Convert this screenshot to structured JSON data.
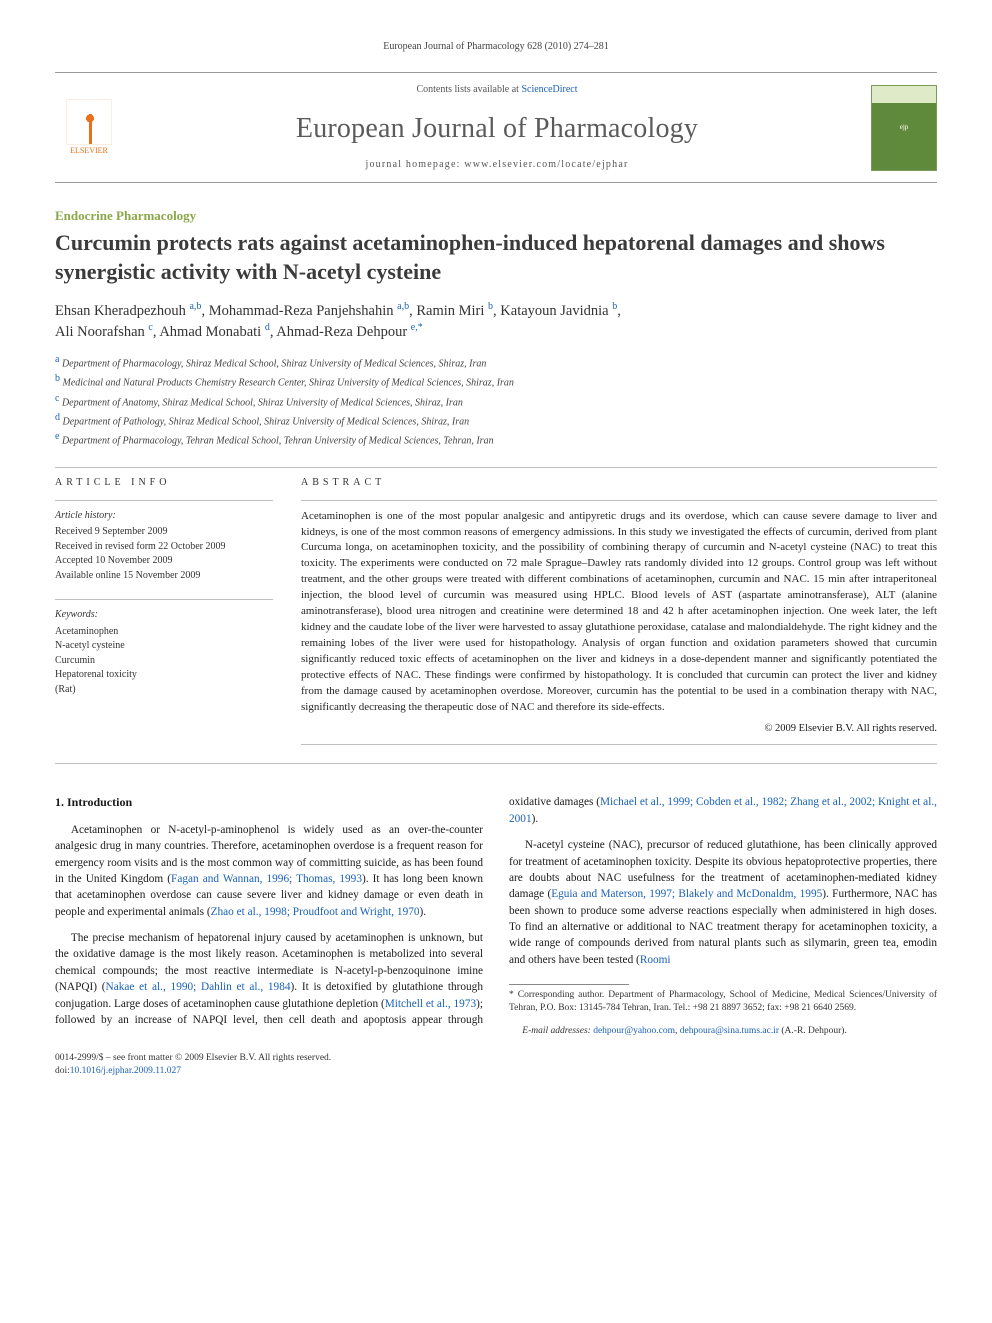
{
  "header": {
    "running_head": "European Journal of Pharmacology 628 (2010) 274–281",
    "contents_prefix": "Contents lists available at ",
    "contents_link": "ScienceDirect",
    "journal_name": "European Journal of Pharmacology",
    "homepage_prefix": "journal homepage: ",
    "homepage_url": "www.elsevier.com/locate/ejphar",
    "elsevier_label": "ELSEVIER"
  },
  "section_label": "Endocrine Pharmacology",
  "title": "Curcumin protects rats against acetaminophen-induced hepatorenal damages and shows synergistic activity with N-acetyl cysteine",
  "authors": [
    {
      "name": "Ehsan Kheradpezhouh",
      "affs": "a,b"
    },
    {
      "name": "Mohammad-Reza Panjehshahin",
      "affs": "a,b"
    },
    {
      "name": "Ramin Miri",
      "affs": "b"
    },
    {
      "name": "Katayoun Javidnia",
      "affs": "b"
    },
    {
      "name": "Ali Noorafshan",
      "affs": "c"
    },
    {
      "name": "Ahmad Monabati",
      "affs": "d"
    },
    {
      "name": "Ahmad-Reza Dehpour",
      "affs": "e,*"
    }
  ],
  "affiliations": [
    {
      "key": "a",
      "text": "Department of Pharmacology, Shiraz Medical School, Shiraz University of Medical Sciences, Shiraz, Iran"
    },
    {
      "key": "b",
      "text": "Medicinal and Natural Products Chemistry Research Center, Shiraz University of Medical Sciences, Shiraz, Iran"
    },
    {
      "key": "c",
      "text": "Department of Anatomy, Shiraz Medical School, Shiraz University of Medical Sciences, Shiraz, Iran"
    },
    {
      "key": "d",
      "text": "Department of Pathology, Shiraz Medical School, Shiraz University of Medical Sciences, Shiraz, Iran"
    },
    {
      "key": "e",
      "text": "Department of Pharmacology, Tehran Medical School, Tehran University of Medical Sciences, Tehran, Iran"
    }
  ],
  "article_info": {
    "heading": "ARTICLE INFO",
    "history_label": "Article history:",
    "received": "Received 9 September 2009",
    "revised": "Received in revised form 22 October 2009",
    "accepted": "Accepted 10 November 2009",
    "online": "Available online 15 November 2009",
    "keywords_label": "Keywords:",
    "keywords": [
      "Acetaminophen",
      "N-acetyl cysteine",
      "Curcumin",
      "Hepatorenal toxicity",
      "(Rat)"
    ]
  },
  "abstract": {
    "heading": "ABSTRACT",
    "text": "Acetaminophen is one of the most popular analgesic and antipyretic drugs and its overdose, which can cause severe damage to liver and kidneys, is one of the most common reasons of emergency admissions. In this study we investigated the effects of curcumin, derived from plant Curcuma longa, on acetaminophen toxicity, and the possibility of combining therapy of curcumin and N-acetyl cysteine (NAC) to treat this toxicity. The experiments were conducted on 72 male Sprague–Dawley rats randomly divided into 12 groups. Control group was left without treatment, and the other groups were treated with different combinations of acetaminophen, curcumin and NAC. 15 min after intraperitoneal injection, the blood level of curcumin was measured using HPLC. Blood levels of AST (aspartate aminotransferase), ALT (alanine aminotransferase), blood urea nitrogen and creatinine were determined 18 and 42 h after acetaminophen injection. One week later, the left kidney and the caudate lobe of the liver were harvested to assay glutathione peroxidase, catalase and malondialdehyde. The right kidney and the remaining lobes of the liver were used for histopathology. Analysis of organ function and oxidation parameters showed that curcumin significantly reduced toxic effects of acetaminophen on the liver and kidneys in a dose-dependent manner and significantly potentiated the protective effects of NAC. These findings were confirmed by histopathology. It is concluded that curcumin can protect the liver and kidney from the damage caused by acetaminophen overdose. Moreover, curcumin has the potential to be used in a combination therapy with NAC, significantly decreasing the therapeutic dose of NAC and therefore its side-effects.",
    "copyright": "© 2009 Elsevier B.V. All rights reserved."
  },
  "body": {
    "intro_heading": "1. Introduction",
    "p1_a": "Acetaminophen or N-acetyl-p-aminophenol is widely used as an over-the-counter analgesic drug in many countries. Therefore, acetaminophen overdose is a frequent reason for emergency room visits and is the most common way of committing suicide, as has been found in the United Kingdom (",
    "p1_cite1": "Fagan and Wannan, 1996; Thomas, 1993",
    "p1_b": "). It has long been known that acetaminophen overdose can cause severe liver and kidney damage or even death in people and experimental animals (",
    "p1_cite2": "Zhao et al., 1998; Proudfoot and Wright, 1970",
    "p1_c": ").",
    "p2_a": "The precise mechanism of hepatorenal injury caused by acetaminophen is unknown, but the oxidative damage is the most likely reason. Acetaminophen is metabolized into several chemical compounds; the most reactive intermediate is N-acetyl-p-benzoquinone imine (NAPQI) (",
    "p2_cite1": "Nakae et al., 1990; Dahlin et al., 1984",
    "p2_b": "). It is detoxified by glutathione through conjugation. Large doses of acetaminophen cause glutathione depletion (",
    "p2_cite2": "Mitchell et al., 1973",
    "p2_c": "); followed by an increase of NAPQI level, then cell death and apoptosis appear through oxidative damages (",
    "p2_cite3": "Michael et al., 1999; Cobden et al., 1982; Zhang et al., 2002; Knight et al., 2001",
    "p2_d": ").",
    "p3_a": "N-acetyl cysteine (NAC), precursor of reduced glutathione, has been clinically approved for treatment of acetaminophen toxicity. Despite its obvious hepatoprotective properties, there are doubts about NAC usefulness for the treatment of acetaminophen-mediated kidney damage (",
    "p3_cite1": "Eguia and Materson, 1997; Blakely and McDonaldm, 1995",
    "p3_b": "). Furthermore, NAC has been shown to produce some adverse reactions especially when administered in high doses. To find an alternative or additional to NAC treatment therapy for acetaminophen toxicity, a wide range of compounds derived from natural plants such as silymarin, green tea, emodin and others have been tested (",
    "p3_cite2": "Roomi"
  },
  "footnotes": {
    "corr_label": "* ",
    "corr_text": "Corresponding author. Department of Pharmacology, School of Medicine, Medical Sciences/University of Tehran, P.O. Box: 13145-784 Tehran, Iran. Tel.: +98 21 8897 3652; fax: +98 21 6640 2569.",
    "email_label": "E-mail addresses: ",
    "email1": "dehpour@yahoo.com",
    "email_sep": ", ",
    "email2": "dehpoura@sina.tums.ac.ir",
    "email_tail": " (A.-R. Dehpour)."
  },
  "footer": {
    "issn_line": "0014-2999/$ – see front matter © 2009 Elsevier B.V. All rights reserved.",
    "doi_prefix": "doi:",
    "doi": "10.1016/j.ejphar.2009.11.027"
  },
  "colors": {
    "link": "#1b61b6",
    "section_green": "#8aa84a",
    "elsevier_orange": "#e9711c"
  }
}
